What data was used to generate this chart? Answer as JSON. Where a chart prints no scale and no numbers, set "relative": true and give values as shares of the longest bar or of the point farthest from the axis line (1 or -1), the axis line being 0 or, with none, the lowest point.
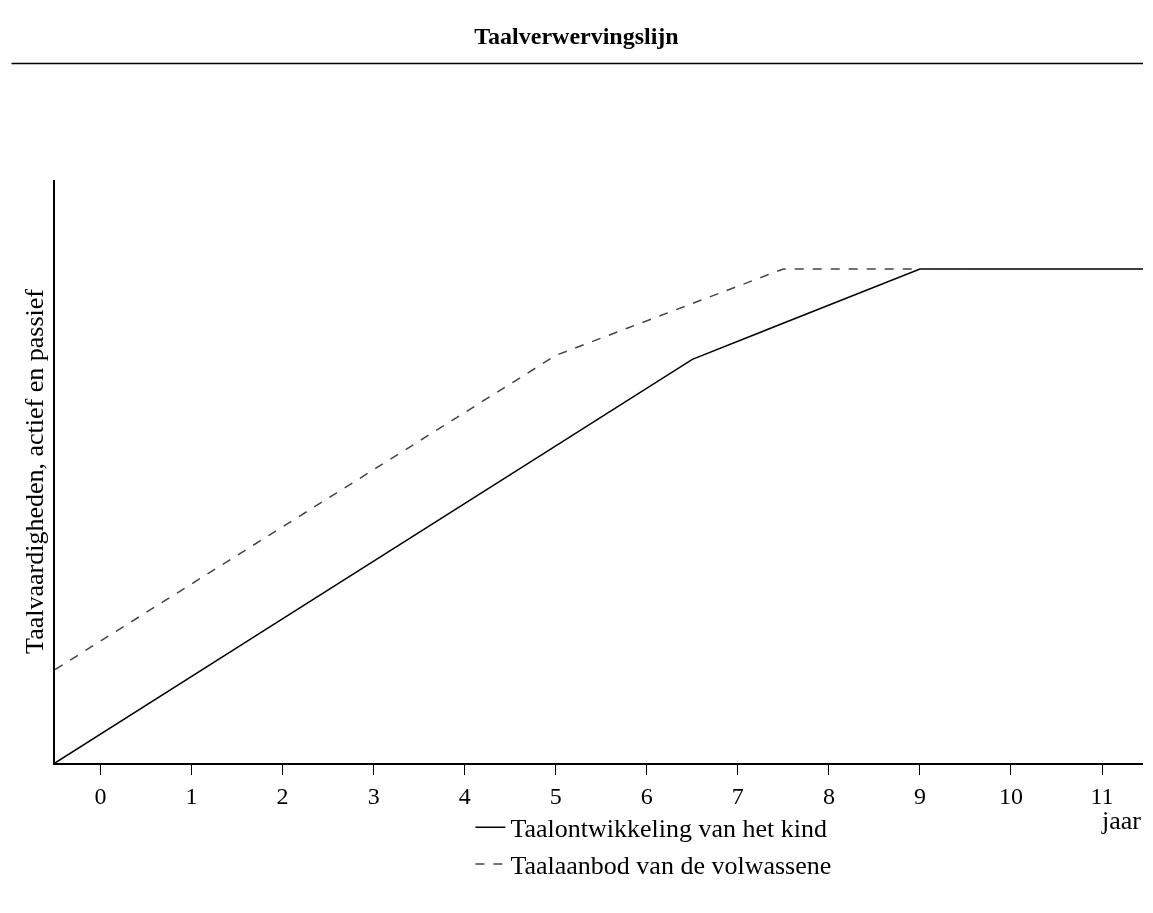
{
  "chart_data": {
    "type": "line",
    "title": "Taalverwervingslijn",
    "xlabel": "jaar",
    "ylabel": "Taalvaardigheden, actief en passief",
    "relative": true,
    "xlim": [
      -0.5,
      11.45
    ],
    "xticks": [
      0,
      1,
      2,
      3,
      4,
      5,
      6,
      7,
      8,
      9,
      10,
      11
    ],
    "legend": "bottom",
    "marker": "none",
    "series": [
      {
        "name": "Taalontwikkeling van het kind",
        "color": "#000000",
        "line_style": "solid",
        "x": [
          -0.5,
          6.5,
          9,
          11.45
        ],
        "values": [
          0,
          0.817,
          1,
          1
        ]
      },
      {
        "name": "Taalaanbod van de volwassene",
        "color": "#444444",
        "line_style": "dashed",
        "x": [
          -0.5,
          5,
          7.5,
          9.5
        ],
        "values": [
          0.189,
          0.825,
          1,
          1
        ]
      }
    ]
  }
}
